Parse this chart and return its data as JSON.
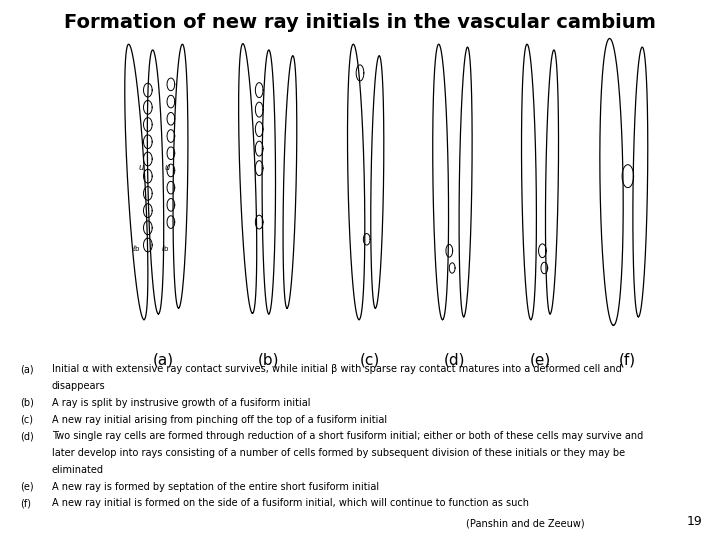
{
  "title": "Formation of new ray initials in the vascular cambium",
  "title_fontsize": 14,
  "title_fontweight": "bold",
  "background_color": "#ffffff",
  "image_bg_color": "#dce8f0",
  "labels": [
    "(a)",
    "(b)",
    "(c)",
    "(d)",
    "(e)",
    "(f)"
  ],
  "page_number": "19",
  "citation": "(Panshin and de Zeeuw)",
  "caption_lines": [
    [
      "(a)",
      "Initial α with extensive ray contact survives, while initial β with sparse ray contact matures into a deformed cell and disappears"
    ],
    [
      "(b)",
      "A ray is split by instrusive growth of a fusiform initial"
    ],
    [
      "(c)",
      "A new ray initial arising from pinching off the top of a fusiform initial"
    ],
    [
      "(d)",
      "Two single ray cells are formed through reduction of a short fusiform initial; either or both of these cells may survive and later develop into rays consisting of a number of cells formed by subsequent division of these initials or they may be eliminated"
    ],
    [
      "(e)",
      "A new ray is formed by septation of the entire short fusiform initial"
    ],
    [
      "(f)",
      "A new ray initial is formed on the side of a fusiform initial, which will continue to function as such"
    ]
  ],
  "caption_fontsize": 7.0,
  "label_fontsize": 11
}
